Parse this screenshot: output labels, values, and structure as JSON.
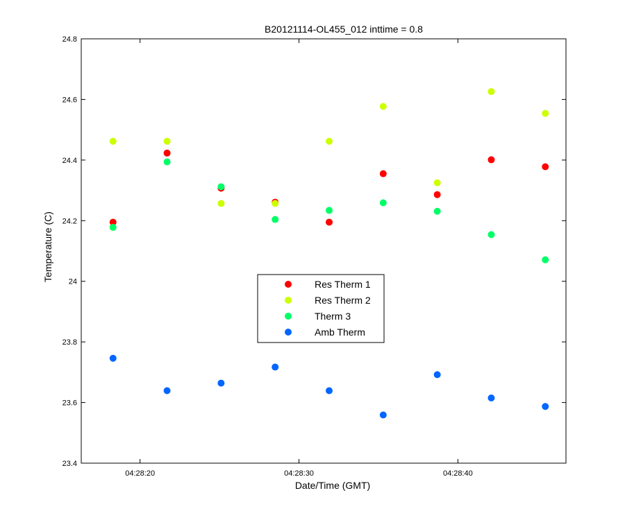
{
  "chart_data": {
    "type": "scatter",
    "title": "B20121114-OL455_012 inttime = 0.8",
    "xlabel": "Date/Time (GMT)",
    "ylabel": "Temperature (C)",
    "x": [
      "04:28:18.3",
      "04:28:21.7",
      "04:28:25.1",
      "04:28:28.5",
      "04:28:31.9",
      "04:28:35.3",
      "04:28:38.7",
      "04:28:42.1",
      "04:28:45.5"
    ],
    "xlim": [
      "04:28:16.3",
      "04:28:46.8"
    ],
    "xticks": [
      "04:28:20",
      "04:28:30",
      "04:28:40"
    ],
    "ylim": [
      23.4,
      24.8
    ],
    "yticks": [
      "23.4",
      "23.6",
      "23.8",
      "24",
      "24.2",
      "24.4",
      "24.6",
      "24.8"
    ],
    "grid": false,
    "legend_position": "center",
    "series": [
      {
        "name": "Res Therm 1",
        "color": "#ff0000",
        "values": [
          24.195,
          24.423,
          24.307,
          24.261,
          24.195,
          24.355,
          24.286,
          24.401,
          24.378
        ]
      },
      {
        "name": "Res Therm 2",
        "color": "#ccff00",
        "values": [
          24.462,
          24.462,
          24.257,
          24.257,
          24.462,
          24.577,
          24.325,
          24.626,
          24.554
        ]
      },
      {
        "name": "Therm 3",
        "color": "#00ff66",
        "values": [
          24.178,
          24.394,
          24.312,
          24.204,
          24.234,
          24.259,
          24.231,
          24.154,
          24.071
        ]
      },
      {
        "name": "Amb Therm",
        "color": "#0066ff",
        "values": [
          23.746,
          23.639,
          23.664,
          23.717,
          23.639,
          23.559,
          23.692,
          23.615,
          23.587
        ]
      }
    ]
  }
}
